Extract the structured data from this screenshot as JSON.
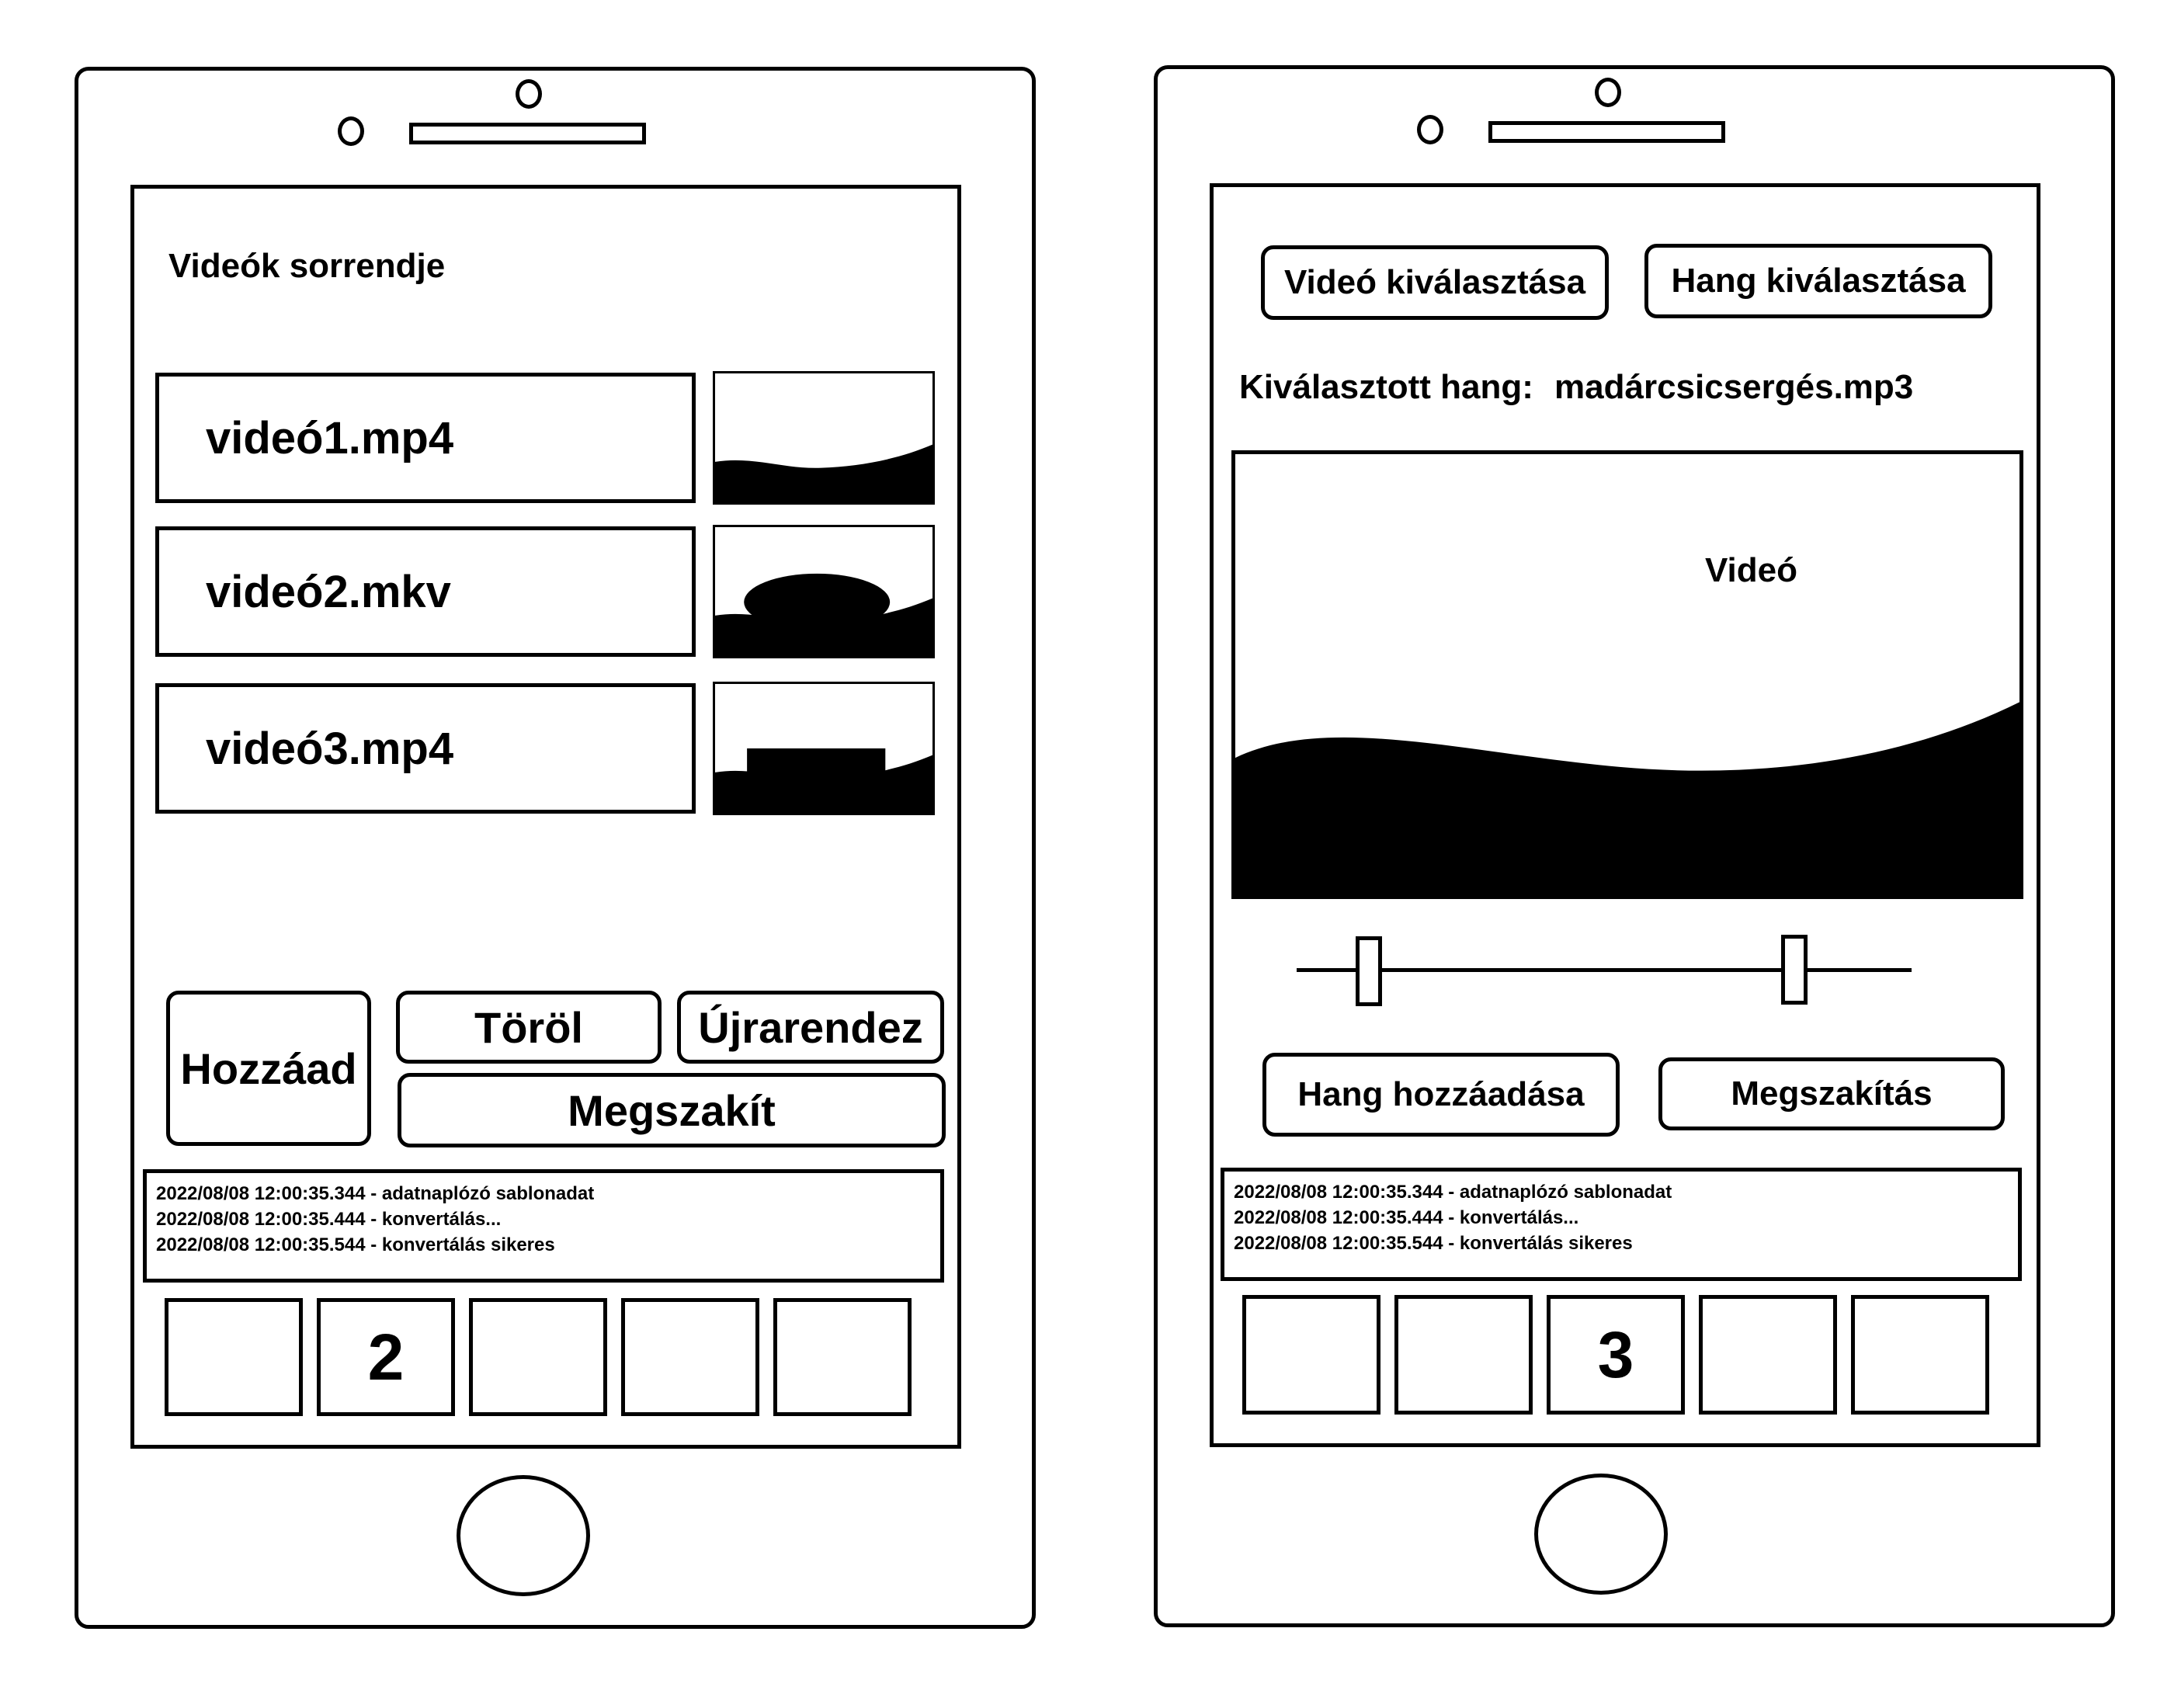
{
  "left_phone": {
    "title": "Videók sorrendje",
    "files": [
      {
        "name": "videó1.mp4",
        "thumbnail": "landscape-thumbnail"
      },
      {
        "name": "videó2.mkv",
        "thumbnail": "dome-thumbnail"
      },
      {
        "name": "videó3.mp4",
        "thumbnail": "building-thumbnail"
      }
    ],
    "buttons": {
      "add": "Hozzáad",
      "delete": "Töröl",
      "reorder": "Újrarendez",
      "abort": "Megszakít"
    },
    "log": [
      "2022/08/08 12:00:35.344 - adatnaplózó sablonadat",
      "2022/08/08 12:00:35.444 - konvertálás...",
      "2022/08/08 12:00:35.544 - konvertálás sikeres"
    ],
    "tabs": [
      "",
      "2",
      "",
      "",
      ""
    ],
    "active_tab": 2
  },
  "right_phone": {
    "buttons": {
      "select_video": "Videó kiválasztása",
      "select_audio": "Hang kiválasztása",
      "add_audio": "Hang hozzáadása",
      "abort": "Megszakítás"
    },
    "selected_audio_label": "Kiválasztott hang:",
    "selected_audio_value": "madárcsicsergés.mp3",
    "video_label": "Videó",
    "log": [
      "2022/08/08 12:00:35.344 - adatnaplózó sablonadat",
      "2022/08/08 12:00:35.444 - konvertálás...",
      "2022/08/08 12:00:35.544 - konvertálás sikeres"
    ],
    "tabs": [
      "",
      "",
      "3",
      "",
      ""
    ],
    "active_tab": 3
  }
}
